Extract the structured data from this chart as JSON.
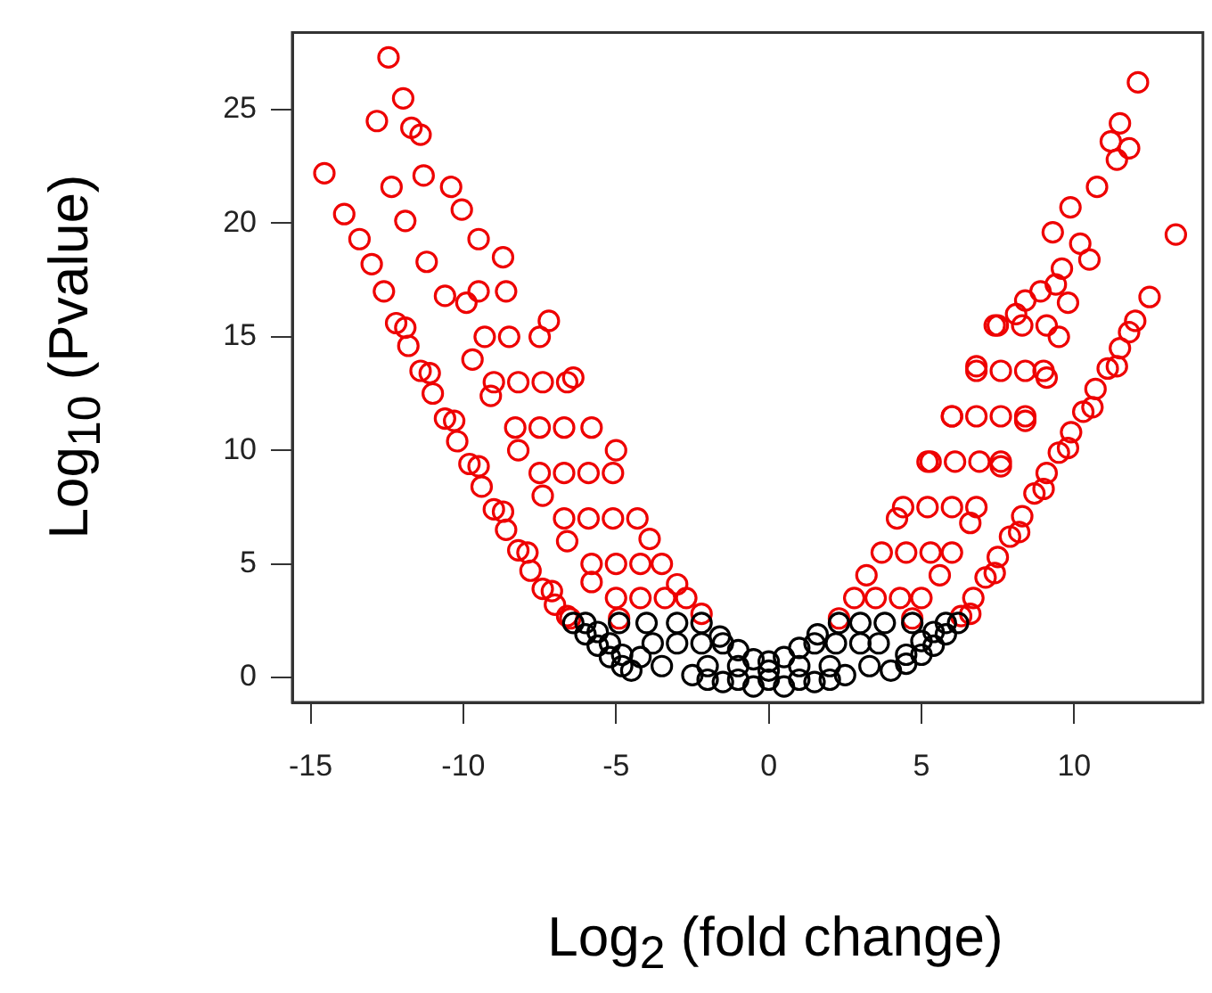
{
  "chart_data": {
    "type": "scatter",
    "xlabel": "Log$_{2}$ (fold change)",
    "ylabel": "Log$_{10}$ (Pvalue)",
    "xlim": [
      -15.6,
      14.1
    ],
    "xticks": [
      -15,
      -10,
      -5,
      0,
      5,
      10
    ],
    "ylim": [
      -1.1,
      28.4
    ],
    "yticks": [
      0,
      5,
      10,
      15,
      20,
      25
    ],
    "marker": "circle",
    "series": [
      {
        "color": "#000000",
        "x": [
          -6.4,
          -6.0,
          -5.6,
          -5.2,
          -4.8,
          -4.5,
          -6.0,
          -5.6,
          -5.2,
          -4.8,
          -4.9,
          -4.0,
          -3.0,
          -2.2,
          -1.6,
          -1.0,
          -0.5,
          0,
          0.5,
          1.0,
          1.6,
          2.3,
          3.0,
          3.8,
          4.7,
          -4.2,
          -3.5,
          -2.5,
          -1.5,
          -0.5,
          0.5,
          1.5,
          2.5,
          3.3,
          6.2,
          5.8,
          5.4,
          5.0,
          4.5,
          4.0,
          5.8,
          5.4,
          5.0,
          4.5,
          -3.8,
          -3.0,
          -2.2,
          -1.5,
          1.5,
          2.2,
          3.0,
          3.6,
          -2.0,
          -1.0,
          0,
          1.0,
          2.0,
          -2.0,
          -1.0,
          0,
          1.0,
          2.0
        ],
        "values": [
          2.4,
          1.9,
          1.4,
          0.9,
          0.5,
          0.3,
          2.4,
          2.0,
          1.5,
          1.0,
          2.4,
          2.4,
          2.4,
          2.4,
          1.8,
          1.2,
          0.8,
          0.7,
          0.9,
          1.3,
          1.9,
          2.4,
          2.4,
          2.4,
          2.4,
          0.9,
          0.5,
          0.1,
          -0.2,
          -0.4,
          -0.4,
          -0.2,
          0.1,
          0.5,
          2.4,
          1.9,
          1.4,
          1.0,
          0.6,
          0.3,
          2.4,
          2.0,
          1.6,
          1.0,
          1.5,
          1.5,
          1.5,
          1.5,
          1.5,
          1.5,
          1.5,
          1.5,
          0.5,
          0.5,
          0.3,
          0.5,
          0.5,
          -0.1,
          -0.1,
          -0.1,
          -0.1,
          -0.1
        ]
      },
      {
        "color": "#ee0000",
        "x": [
          -14.55,
          -13.9,
          -12.45,
          -11.97,
          -12.83,
          -11.4,
          -11.7,
          -12.35,
          -11.9,
          -11.3,
          -10.4,
          -10.05,
          -11.2,
          -10.6,
          -9.7,
          -9.1,
          -9.5,
          -8.7,
          -13.4,
          -13.0,
          -12.6,
          -12.2,
          -11.8,
          -11.4,
          -11.0,
          -10.6,
          -10.2,
          -9.8,
          -9.4,
          -9.0,
          -8.6,
          -8.2,
          -7.8,
          -7.4,
          -7.0,
          -6.6,
          -11.9,
          -11.1,
          -10.3,
          -9.5,
          -8.7,
          -7.9,
          -7.1,
          -6.5,
          -9.9,
          -8.2,
          -7.4,
          -6.6,
          -5.8,
          -4.9,
          -7.2,
          -6.4,
          -5.0,
          -3.9,
          -3.0,
          -2.2,
          -5.0,
          -4.2,
          -3.4,
          -2.7,
          -5.8,
          -5.0,
          -4.2,
          -3.5,
          -6.7,
          -5.9,
          -5.1,
          -4.3,
          -7.5,
          -6.7,
          -5.9,
          -5.1,
          -8.3,
          -7.5,
          -6.7,
          -5.8,
          -9.0,
          -8.2,
          -7.4,
          -6.6,
          -9.3,
          -8.5,
          -7.5,
          -9.5,
          -8.6,
          2.3,
          3.2,
          4.2,
          5.2,
          6.0,
          6.8,
          7.4,
          4.7,
          5.6,
          6.6,
          7.6,
          8.4,
          9.1,
          9.5,
          9.8,
          2.8,
          3.5,
          4.3,
          5.0,
          3.7,
          4.5,
          5.3,
          6.0,
          4.4,
          5.2,
          6.0,
          6.8,
          5.3,
          6.1,
          6.9,
          7.6,
          6.0,
          6.8,
          7.6,
          8.4,
          6.8,
          7.6,
          8.4,
          9.0,
          7.5,
          8.3,
          9.1,
          12.09,
          11.5,
          11.2,
          11.8,
          11.4,
          10.75,
          9.88,
          9.3,
          10.2,
          10.5,
          9.6,
          8.9,
          9.4,
          8.4,
          8.1,
          13.33,
          12.47,
          12.0,
          6.3,
          6.7,
          7.1,
          7.5,
          7.9,
          8.3,
          8.7,
          9.1,
          9.5,
          9.9,
          10.3,
          10.7,
          11.1,
          11.5,
          11.8,
          6.6,
          7.4,
          8.2,
          9.0,
          9.8,
          10.6,
          11.4
        ],
        "values": [
          22.2,
          20.4,
          27.3,
          25.5,
          24.5,
          23.9,
          24.2,
          21.6,
          20.1,
          22.1,
          21.6,
          20.6,
          18.3,
          16.8,
          14.0,
          12.4,
          19.3,
          18.5,
          19.3,
          18.2,
          17.0,
          15.6,
          14.6,
          13.5,
          12.5,
          11.4,
          10.4,
          9.4,
          8.4,
          7.4,
          6.5,
          5.6,
          4.7,
          3.9,
          3.2,
          2.7,
          15.4,
          13.4,
          11.3,
          9.3,
          7.3,
          5.5,
          3.8,
          2.6,
          16.5,
          10.0,
          8.0,
          6.0,
          4.2,
          2.6,
          15.7,
          13.2,
          10.0,
          6.1,
          4.1,
          2.8,
          3.5,
          3.5,
          3.5,
          3.5,
          5.0,
          5.0,
          5.0,
          5.0,
          7.0,
          7.0,
          7.0,
          7.0,
          9.0,
          9.0,
          9.0,
          9.0,
          11.0,
          11.0,
          11.0,
          11.0,
          13.0,
          13.0,
          13.0,
          13.0,
          15.0,
          15.0,
          15.0,
          17.0,
          17.0,
          2.6,
          4.5,
          7.0,
          9.5,
          11.5,
          13.7,
          15.5,
          2.6,
          4.5,
          6.8,
          9.3,
          11.3,
          13.2,
          15.0,
          16.5,
          3.5,
          3.5,
          3.5,
          3.5,
          5.5,
          5.5,
          5.5,
          5.5,
          7.5,
          7.5,
          7.5,
          7.5,
          9.5,
          9.5,
          9.5,
          9.5,
          11.5,
          11.5,
          11.5,
          11.5,
          13.5,
          13.5,
          13.5,
          13.5,
          15.5,
          15.5,
          15.5,
          26.2,
          24.4,
          23.6,
          23.3,
          22.8,
          21.6,
          20.7,
          19.6,
          19.1,
          18.4,
          18.0,
          17.0,
          17.3,
          16.6,
          16.0,
          19.5,
          16.75,
          15.7,
          2.7,
          3.5,
          4.4,
          5.3,
          6.2,
          7.1,
          8.1,
          9.0,
          9.9,
          10.8,
          11.7,
          12.7,
          13.6,
          14.5,
          15.2,
          2.8,
          4.6,
          6.4,
          8.3,
          10.1,
          11.9,
          13.7
        ]
      }
    ]
  }
}
